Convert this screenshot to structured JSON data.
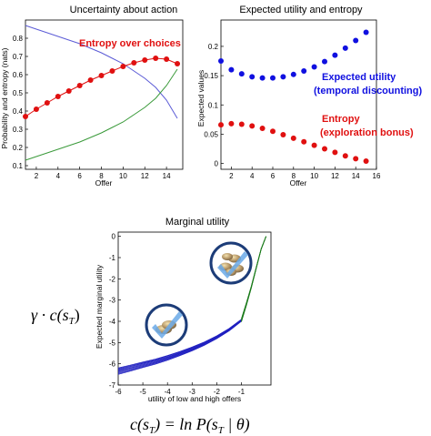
{
  "chart_data": [
    {
      "type": "line",
      "title": "Uncertainty about action",
      "xlabel": "Offer",
      "ylabel": "Probability and entropy (nats)",
      "xlim": [
        1,
        15.5
      ],
      "ylim": [
        0.08,
        0.9
      ],
      "xticks": [
        2,
        4,
        6,
        8,
        10,
        12,
        14
      ],
      "yticks": [
        0.1,
        0.2,
        0.3,
        0.4,
        0.5,
        0.6,
        0.7,
        0.8
      ],
      "grid": false,
      "series": [
        {
          "color": "#5b5bd6",
          "x": [
            1,
            2,
            3,
            4,
            5,
            6,
            7,
            8,
            9,
            10,
            11,
            12,
            13,
            14,
            15
          ],
          "values": [
            0.87,
            0.85,
            0.83,
            0.81,
            0.79,
            0.77,
            0.745,
            0.72,
            0.69,
            0.66,
            0.62,
            0.58,
            0.53,
            0.46,
            0.36
          ]
        },
        {
          "color": "#3a9a3a",
          "x": [
            1,
            2,
            3,
            4,
            5,
            6,
            7,
            8,
            9,
            10,
            11,
            12,
            13,
            14,
            15
          ],
          "values": [
            0.13,
            0.15,
            0.17,
            0.19,
            0.21,
            0.23,
            0.255,
            0.28,
            0.31,
            0.34,
            0.38,
            0.42,
            0.47,
            0.54,
            0.63
          ]
        },
        {
          "name": "Entropy over choices",
          "color": "#e01010",
          "markers": true,
          "x": [
            1,
            2,
            3,
            4,
            5,
            6,
            7,
            8,
            9,
            10,
            11,
            12,
            13,
            14,
            15
          ],
          "values": [
            0.37,
            0.41,
            0.445,
            0.48,
            0.51,
            0.54,
            0.57,
            0.595,
            0.62,
            0.645,
            0.665,
            0.68,
            0.69,
            0.685,
            0.66
          ]
        }
      ],
      "annotations": [
        {
          "text": "Entropy over choices",
          "color": "#e01010"
        }
      ]
    },
    {
      "type": "scatter",
      "title": "Expected utility and entropy",
      "xlabel": "Offer",
      "ylabel": "Expected values",
      "xlim": [
        1,
        16
      ],
      "ylim": [
        -0.01,
        0.245
      ],
      "xticks": [
        2,
        4,
        6,
        8,
        10,
        12,
        14,
        16
      ],
      "yticks": [
        0,
        0.05,
        0.1,
        0.15,
        0.2
      ],
      "grid": false,
      "series": [
        {
          "name": "Expected utility (temporal discounting)",
          "color": "#1010e0",
          "x": [
            1,
            2,
            3,
            4,
            5,
            6,
            7,
            8,
            9,
            10,
            11,
            12,
            13,
            14,
            15
          ],
          "values": [
            0.175,
            0.16,
            0.153,
            0.148,
            0.146,
            0.146,
            0.148,
            0.152,
            0.158,
            0.165,
            0.174,
            0.185,
            0.197,
            0.21,
            0.224
          ]
        },
        {
          "name": "Entropy (exploration bonus)",
          "color": "#e01010",
          "x": [
            1,
            2,
            3,
            4,
            5,
            6,
            7,
            8,
            9,
            10,
            11,
            12,
            13,
            14,
            15
          ],
          "values": [
            0.066,
            0.068,
            0.067,
            0.064,
            0.06,
            0.055,
            0.049,
            0.043,
            0.037,
            0.031,
            0.025,
            0.019,
            0.013,
            0.008,
            0.004
          ]
        }
      ],
      "annotations": [
        {
          "text": "Expected utility",
          "color": "#1010e0"
        },
        {
          "text": "(temporal discounting)",
          "color": "#1010e0"
        },
        {
          "text": "Entropy",
          "color": "#e01010"
        },
        {
          "text": "(exploration bonus)",
          "color": "#e01010"
        }
      ]
    },
    {
      "type": "line",
      "title": "Marginal utility",
      "xlabel": "utility of low and high offers",
      "ylabel": "Expected marginal utility",
      "xlim": [
        -6,
        0.2
      ],
      "ylim": [
        -7,
        0.2
      ],
      "xticks": [
        -6,
        -5,
        -4,
        -3,
        -2,
        -1
      ],
      "yticks": [
        0,
        -1,
        -2,
        -3,
        -4,
        -5,
        -6,
        -7
      ],
      "grid": false,
      "low_offers": {
        "color": "#2020c0",
        "curve_count": 8,
        "x": [
          -6.0,
          -5.5,
          -5.0,
          -4.5,
          -4.0,
          -3.5,
          -3.0,
          -2.5,
          -2.0,
          -1.5,
          -1.0
        ],
        "values": [
          -6.35,
          -6.2,
          -6.05,
          -5.9,
          -5.72,
          -5.52,
          -5.3,
          -5.05,
          -4.75,
          -4.4,
          -3.95
        ],
        "spread": 0.3
      },
      "high_offers": {
        "color": "#1a7a1a",
        "curve_count": 6,
        "x": [
          -1.0,
          -0.8,
          -0.6,
          -0.4,
          -0.2,
          0.0
        ],
        "values": [
          -3.95,
          -3.2,
          -2.4,
          -1.5,
          -0.6,
          0.0
        ],
        "spread": 0.15
      },
      "equations": [
        "γ · c(s",
        "c(s",
        ") = ln P(s",
        " | θ)"
      ],
      "subscripts": [
        "T",
        ")"
      ],
      "icons": [
        "coins-low-offer-icon",
        "coins-high-offer-icon"
      ]
    }
  ]
}
